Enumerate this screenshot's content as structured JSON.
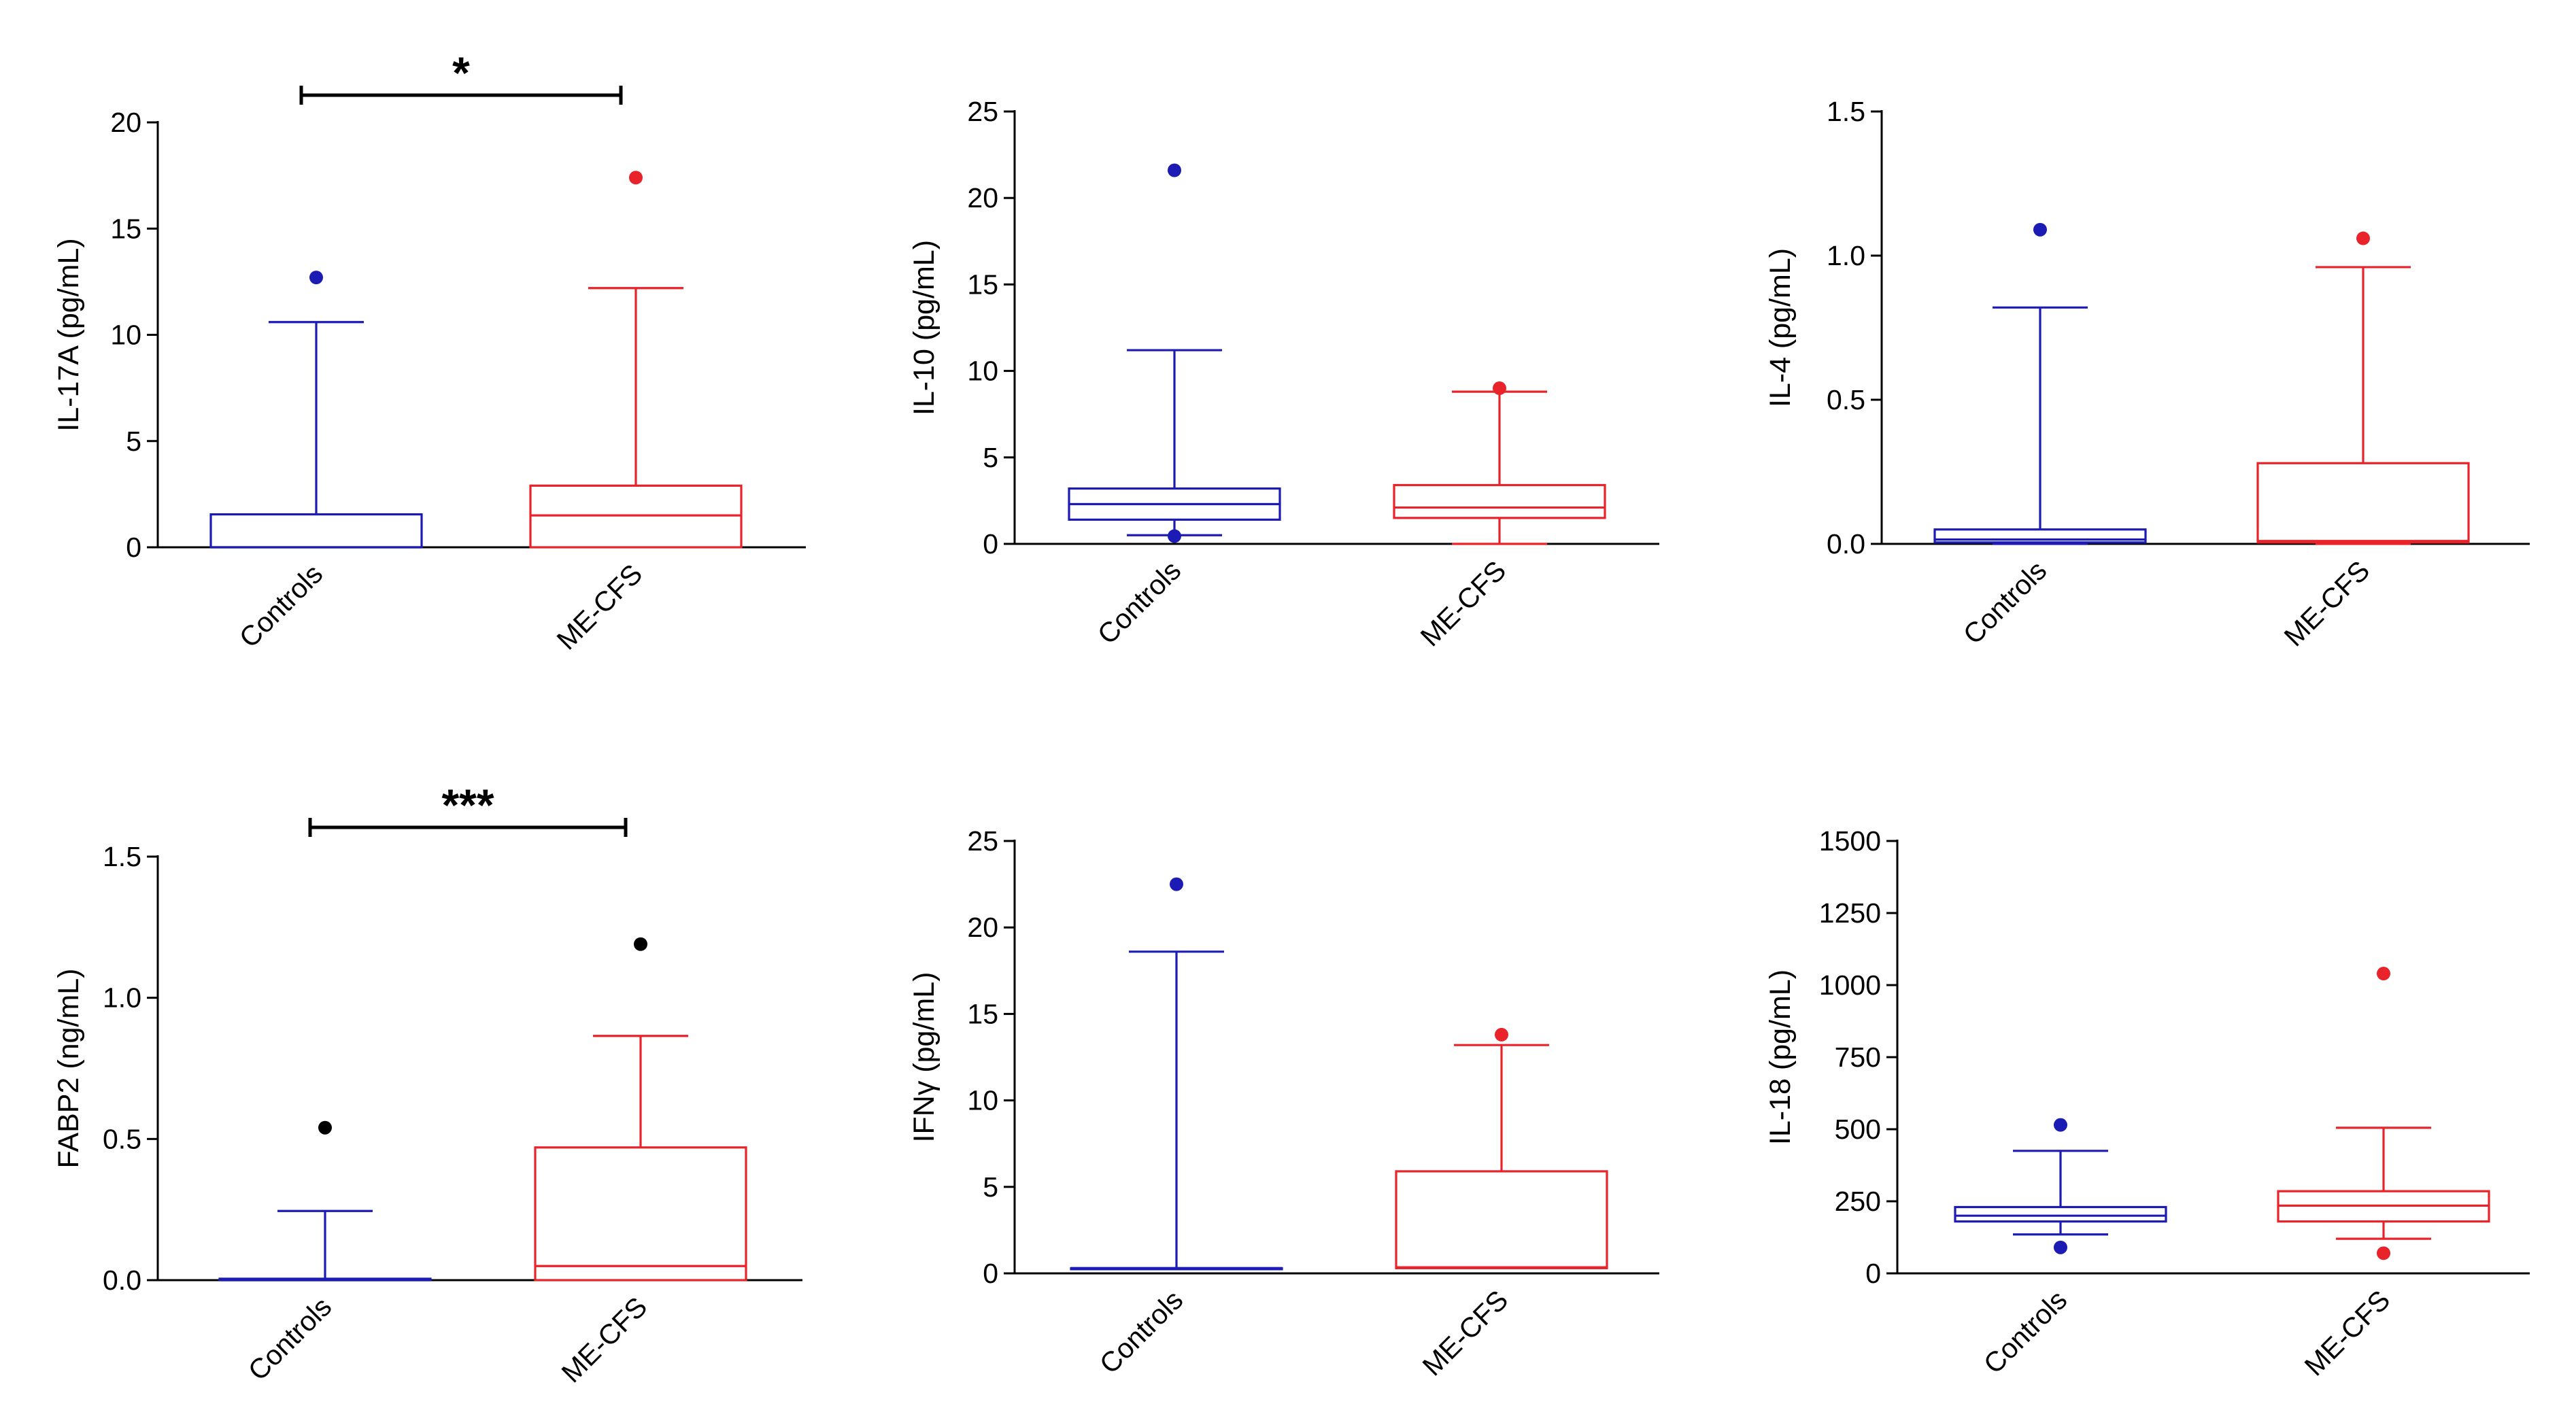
{
  "chart_data": [
    {
      "type": "box",
      "ylabel": "IL-17A (pg/mL)",
      "ylim": [
        0,
        20
      ],
      "yticks": [
        0,
        5,
        10,
        15,
        20
      ],
      "yticks_text": [
        "0",
        "5",
        "10",
        "15",
        "20"
      ],
      "categories": [
        "Controls",
        "ME-CFS"
      ],
      "significance": "*",
      "boxes": [
        {
          "name": "Controls",
          "color": "#1c1cb4",
          "whisker_low": 0,
          "q1": 0,
          "median": 0,
          "q3": 1.55,
          "whisker_high": 10.6,
          "outliers": [
            12.7
          ]
        },
        {
          "name": "ME-CFS",
          "color": "#e8232a",
          "whisker_low": 0,
          "q1": 0,
          "median": 1.5,
          "q3": 2.9,
          "whisker_high": 12.2,
          "outliers": [
            17.4
          ]
        }
      ]
    },
    {
      "type": "box",
      "ylabel": "IL-10 (pg/mL)",
      "ylim": [
        0,
        25
      ],
      "yticks": [
        0,
        5,
        10,
        15,
        20,
        25
      ],
      "yticks_text": [
        "0",
        "5",
        "10",
        "15",
        "20",
        "25"
      ],
      "categories": [
        "Controls",
        "ME-CFS"
      ],
      "significance": "",
      "boxes": [
        {
          "name": "Controls",
          "color": "#1c1cb4",
          "whisker_low": 0.5,
          "q1": 1.4,
          "median": 2.3,
          "q3": 3.2,
          "whisker_high": 11.2,
          "outliers": [
            21.6,
            0.45
          ]
        },
        {
          "name": "ME-CFS",
          "color": "#e8232a",
          "whisker_low": 0,
          "q1": 1.5,
          "median": 2.1,
          "q3": 3.4,
          "whisker_high": 8.8,
          "outliers": [
            9.0
          ]
        }
      ]
    },
    {
      "type": "box",
      "ylabel": "IL-4 (pg/mL)",
      "ylim": [
        0,
        1.5
      ],
      "yticks": [
        0,
        0.5,
        1.0,
        1.5
      ],
      "yticks_text": [
        "0.0",
        "0.5",
        "1.0",
        "1.5"
      ],
      "categories": [
        "Controls",
        "ME-CFS"
      ],
      "significance": "",
      "boxes": [
        {
          "name": "Controls",
          "color": "#1c1cb4",
          "whisker_low": 0,
          "q1": 0.005,
          "median": 0.015,
          "q3": 0.05,
          "whisker_high": 0.82,
          "outliers": [
            1.09
          ]
        },
        {
          "name": "ME-CFS",
          "color": "#e8232a",
          "whisker_low": 0,
          "q1": 0.005,
          "median": 0.01,
          "q3": 0.28,
          "whisker_high": 0.96,
          "outliers": [
            1.06
          ]
        }
      ]
    },
    {
      "type": "box",
      "ylabel": "FABP2 (ng/mL)",
      "ylim": [
        0,
        1.5
      ],
      "yticks": [
        0,
        0.5,
        1.0,
        1.5
      ],
      "yticks_text": [
        "0.0",
        "0.5",
        "1.0",
        "1.5"
      ],
      "categories": [
        "Controls",
        "ME-CFS"
      ],
      "significance": "***",
      "boxes": [
        {
          "name": "Controls",
          "color": "#1c1cb4",
          "whisker_low": 0,
          "q1": 0,
          "median": 0,
          "q3": 0.005,
          "whisker_high": 0.245,
          "outliers": [
            0.54
          ],
          "outlier_color": "#000000"
        },
        {
          "name": "ME-CFS",
          "color": "#e8232a",
          "whisker_low": 0,
          "q1": 0,
          "median": 0.05,
          "q3": 0.47,
          "whisker_high": 0.865,
          "outliers": [
            1.19
          ],
          "outlier_color": "#000000"
        }
      ]
    },
    {
      "type": "box",
      "ylabel": "IFNγ (pg/mL)",
      "ylim": [
        0,
        25
      ],
      "yticks": [
        0,
        5,
        10,
        15,
        20,
        25
      ],
      "yticks_text": [
        "0",
        "5",
        "10",
        "15",
        "20",
        "25"
      ],
      "categories": [
        "Controls",
        "ME-CFS"
      ],
      "significance": "",
      "boxes": [
        {
          "name": "Controls",
          "color": "#1c1cb4",
          "whisker_low": 0.3,
          "q1": 0.3,
          "median": 0.3,
          "q3": 0.3,
          "whisker_high": 18.6,
          "outliers": [
            22.5
          ]
        },
        {
          "name": "ME-CFS",
          "color": "#e8232a",
          "whisker_low": 0.3,
          "q1": 0.3,
          "median": 0.35,
          "q3": 5.9,
          "whisker_high": 13.2,
          "outliers": [
            13.8
          ]
        }
      ]
    },
    {
      "type": "box",
      "ylabel": "IL-18 (pg/mL)",
      "ylim": [
        0,
        1500
      ],
      "yticks": [
        0,
        250,
        500,
        750,
        1000,
        1250,
        1500
      ],
      "yticks_text": [
        "0",
        "250",
        "500",
        "750",
        "1000",
        "1250",
        "1500"
      ],
      "categories": [
        "Controls",
        "ME-CFS"
      ],
      "significance": "",
      "boxes": [
        {
          "name": "Controls",
          "color": "#1c1cb4",
          "whisker_low": 135,
          "q1": 180,
          "median": 200,
          "q3": 230,
          "whisker_high": 425,
          "outliers": [
            515,
            90
          ]
        },
        {
          "name": "ME-CFS",
          "color": "#e8232a",
          "whisker_low": 120,
          "q1": 180,
          "median": 235,
          "q3": 285,
          "whisker_high": 505,
          "outliers": [
            1040,
            70
          ]
        }
      ]
    }
  ]
}
